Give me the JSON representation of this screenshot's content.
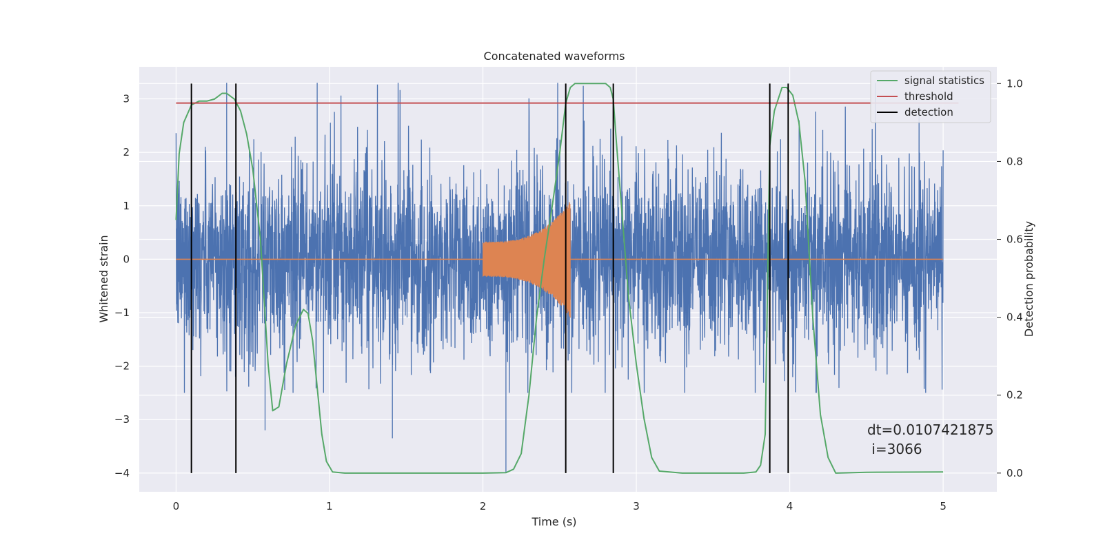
{
  "chart_data": {
    "type": "line",
    "title": "Concatenated waveforms",
    "xlabel": "Time (s)",
    "ylabel": "Whitened strain",
    "y2label": "Detection probability",
    "xlim": [
      -0.24,
      5.35
    ],
    "ylim": [
      -4.35,
      3.6
    ],
    "y2lim": [
      -0.048,
      1.043
    ],
    "xticks": [
      0,
      1,
      2,
      3,
      4,
      5
    ],
    "yticks": [
      -4,
      -3,
      -2,
      -1,
      0,
      1,
      2,
      3
    ],
    "y2ticks": [
      0.0,
      0.2,
      0.4,
      0.6,
      0.8,
      1.0
    ],
    "grid": true,
    "background": "#eaeaf2",
    "legend": {
      "position": "top-right",
      "entries": [
        {
          "label": "signal statistics",
          "color": "#55a868"
        },
        {
          "label": "threshold",
          "color": "#c44e52"
        },
        {
          "label": "detection",
          "color": "#000000"
        }
      ]
    },
    "annotation": [
      "dt=0.0107421875",
      " i=3066"
    ],
    "series": [
      {
        "name": "whitened noise",
        "axis": "left",
        "color": "#4c72b0",
        "x_range": [
          0,
          5
        ],
        "amplitude_envelope": [
          -2.5,
          3.3
        ],
        "notable_spikes": [
          {
            "x": 0.92,
            "y": 3.3
          },
          {
            "x": 0.33,
            "y": 3.3
          },
          {
            "x": 2.15,
            "y": -4.0
          },
          {
            "x": 1.41,
            "y": -3.35
          },
          {
            "x": 0.58,
            "y": -3.2
          }
        ]
      },
      {
        "name": "injected waveform",
        "axis": "left",
        "color": "#dd8452",
        "x_range": [
          2.0,
          2.57
        ],
        "amplitude_start": 0.33,
        "amplitude_peak": 1.1
      },
      {
        "name": "signal statistics",
        "axis": "right",
        "color": "#55a868",
        "x": [
          0,
          0.02,
          0.05,
          0.1,
          0.15,
          0.2,
          0.25,
          0.3,
          0.33,
          0.38,
          0.42,
          0.46,
          0.5,
          0.55,
          0.6,
          0.63,
          0.67,
          0.72,
          0.78,
          0.83,
          0.86,
          0.89,
          0.92,
          0.95,
          0.98,
          1.02,
          1.1,
          1.5,
          2.0,
          2.15,
          2.2,
          2.25,
          2.3,
          2.35,
          2.4,
          2.45,
          2.5,
          2.54,
          2.57,
          2.6,
          2.7,
          2.8,
          2.83,
          2.85,
          2.87,
          2.9,
          2.95,
          3.0,
          3.05,
          3.1,
          3.15,
          3.3,
          3.5,
          3.7,
          3.78,
          3.81,
          3.84,
          3.87,
          3.9,
          3.95,
          3.98,
          4.02,
          4.06,
          4.1,
          4.15,
          4.2,
          4.25,
          4.3,
          4.5,
          5.0
        ],
        "y": [
          0.65,
          0.82,
          0.9,
          0.945,
          0.955,
          0.955,
          0.96,
          0.975,
          0.975,
          0.96,
          0.93,
          0.87,
          0.78,
          0.6,
          0.28,
          0.16,
          0.17,
          0.28,
          0.38,
          0.42,
          0.41,
          0.34,
          0.22,
          0.1,
          0.03,
          0.003,
          0.0,
          0.0,
          0.0,
          0.001,
          0.01,
          0.05,
          0.2,
          0.4,
          0.55,
          0.68,
          0.82,
          0.95,
          0.99,
          1.0,
          1.0,
          1.0,
          0.99,
          0.96,
          0.85,
          0.7,
          0.45,
          0.28,
          0.14,
          0.04,
          0.005,
          0.0,
          0.0,
          0.0,
          0.003,
          0.02,
          0.1,
          0.84,
          0.93,
          0.99,
          0.99,
          0.97,
          0.9,
          0.75,
          0.4,
          0.15,
          0.04,
          0.0,
          0.002,
          0.003
        ]
      },
      {
        "name": "threshold",
        "axis": "right",
        "color": "#c44e52",
        "x": [
          0,
          5.1
        ],
        "y": [
          0.95,
          0.95
        ]
      }
    ],
    "detections": [
      0.1,
      0.39,
      2.54,
      2.85,
      3.87,
      3.99
    ],
    "detection_y2_range": [
      0.0,
      1.0
    ]
  }
}
